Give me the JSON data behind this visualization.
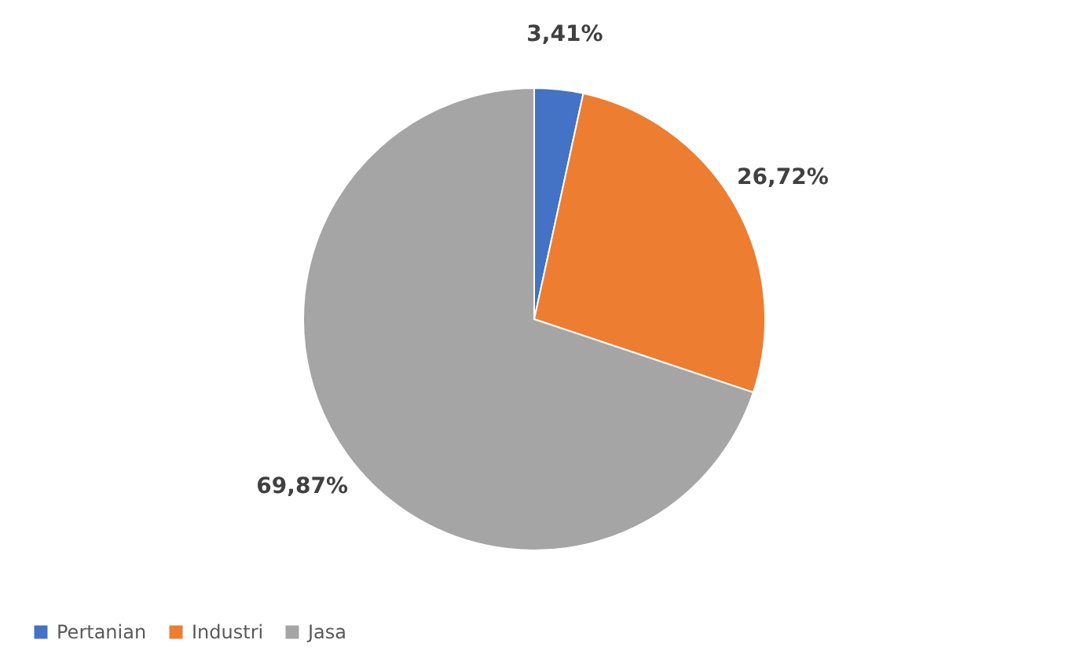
{
  "chart_data": {
    "type": "pie",
    "categories": [
      "Pertanian",
      "Industri",
      "Jasa"
    ],
    "values": [
      3.41,
      26.72,
      69.87
    ],
    "colors": [
      "#4472c4",
      "#ed7d31",
      "#a5a5a5"
    ],
    "value_labels": [
      "3,41%",
      "26,72%",
      "69,87%"
    ],
    "legend": "bottom"
  }
}
